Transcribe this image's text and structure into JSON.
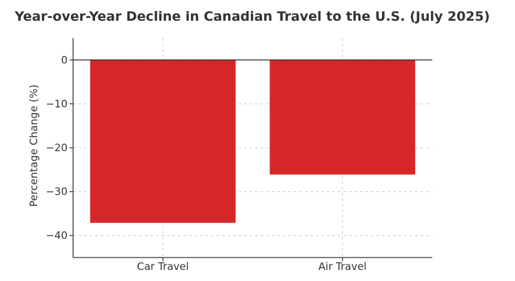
{
  "chart_data": {
    "type": "bar",
    "title": "Year-over-Year Decline in Canadian Travel to the U.S. (July 2025)",
    "xlabel": "",
    "ylabel": "Percentage Change (%)",
    "categories": [
      "Car Travel",
      "Air Travel"
    ],
    "values": [
      -37.1,
      -26.1
    ],
    "ylim": [
      -45,
      5
    ],
    "yticks": [
      0,
      -10,
      -20,
      -30,
      -40
    ],
    "ytick_labels": [
      "0",
      "−10",
      "−20",
      "−30",
      "−40"
    ],
    "grid": true,
    "bar_color": "#d62728"
  }
}
